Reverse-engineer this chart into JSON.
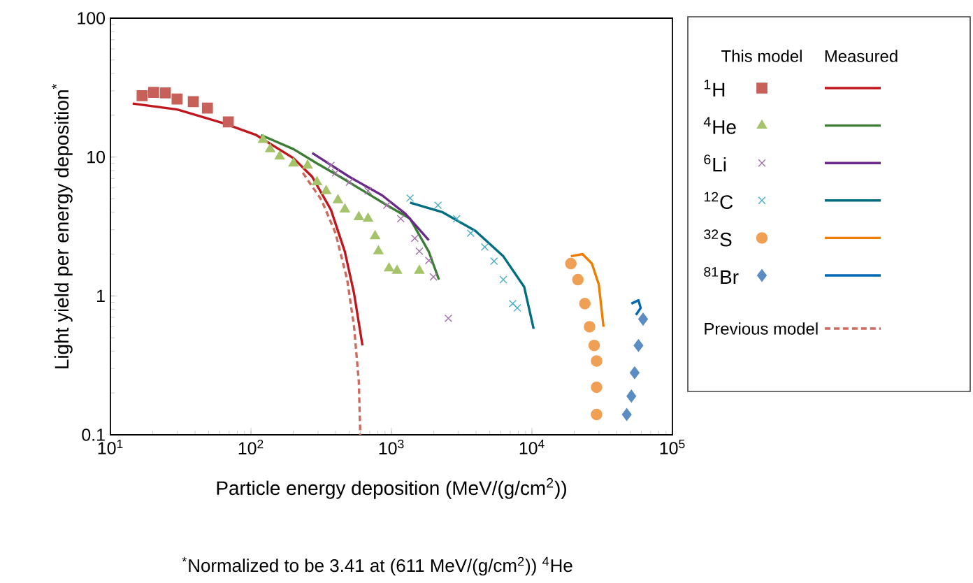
{
  "chart_data": {
    "type": "scatter",
    "xlabel": "Particle energy deposition (MeV/(g/cm$^{2}$))",
    "ylabel": "Light yield per energy deposition$^{*}$",
    "log": "xy",
    "xlim": [
      10,
      100000
    ],
    "ylim": [
      0.1,
      100
    ],
    "xticks": [
      {
        "value": 10,
        "label": "10$^{1}$"
      },
      {
        "value": 100,
        "label": "10$^{2}$"
      },
      {
        "value": 1000,
        "label": "10$^{3}$"
      },
      {
        "value": 10000,
        "label": "10$^{4}$"
      },
      {
        "value": 100000,
        "label": "10$^{5}$"
      }
    ],
    "yticks": [
      0.1,
      1,
      10,
      100
    ],
    "legend": "right",
    "annotations": [
      "This model",
      "Measured",
      "$^{*}$Normalized to be 3.41 at (611 MeV/(g/cm$^{2}$)) $^{4}$He"
    ],
    "series": [
      {
        "name": "$^{1}$H",
        "marker": "square",
        "color": "#c8605a",
        "x": [
          16.8,
          20.3,
          24.6,
          29.8,
          38.9,
          49,
          69
        ],
        "values": [
          27.7,
          29.2,
          29,
          26.2,
          25.1,
          22.5,
          17.9
        ]
      },
      {
        "name": "$^{4}$He",
        "marker": "triangle",
        "color": "#a4c36a",
        "x": [
          122,
          137,
          160,
          201,
          253,
          295,
          343,
          416,
          466,
          586,
          682,
          765,
          808,
          961,
          1096,
          1580
        ],
        "values": [
          13.3,
          11.4,
          10.1,
          9.0,
          8.7,
          6.6,
          5.7,
          4.9,
          4.2,
          3.7,
          3.6,
          2.7,
          2.1,
          1.58,
          1.52,
          1.52
        ]
      },
      {
        "name": "$^{6}$Li",
        "marker": "cross",
        "color": "#a070a8",
        "x": [
          371,
          400,
          502,
          682,
          927,
          1164,
          1466,
          1580,
          1845,
          1991,
          2541
        ],
        "values": [
          8.7,
          7.7,
          6.6,
          5.7,
          4.5,
          3.6,
          2.6,
          2.1,
          1.8,
          1.37,
          0.69
        ]
      },
      {
        "name": "$^{12}$C",
        "marker": "cross",
        "color": "#4aaec8",
        "x": [
          1356,
          2143,
          2911,
          3664,
          4613,
          5370,
          6253,
          7295,
          7870
        ],
        "values": [
          5.06,
          4.5,
          3.6,
          2.83,
          2.25,
          1.78,
          1.31,
          0.88,
          0.82
        ]
      },
      {
        "name": "$^{32}$S",
        "marker": "circle",
        "color": "#f0a055",
        "x": [
          18920,
          21230,
          23800,
          25700,
          27730,
          28840,
          28840,
          28840
        ],
        "values": [
          1.71,
          1.31,
          0.88,
          0.6,
          0.44,
          0.34,
          0.22,
          0.14
        ]
      },
      {
        "name": "$^{81}$Br",
        "marker": "diamond",
        "color": "#5b8cc4",
        "x": [
          61800,
          57300,
          53800,
          51000,
          47300
        ],
        "values": [
          0.68,
          0.44,
          0.28,
          0.19,
          0.14
        ]
      },
      {
        "type": "line",
        "color": "#c0161e",
        "x": [
          14.4,
          29.8,
          64,
          109,
          201,
          273,
          371,
          466,
          542,
          622
        ],
        "values": [
          24.3,
          22,
          17.5,
          14.4,
          9.8,
          7.2,
          4.17,
          2.08,
          1.04,
          0.44
        ]
      },
      {
        "type": "line",
        "color": "#3b7d34",
        "x": [
          118,
          201,
          295,
          432,
          632,
          927,
          1356,
          1845,
          2178
        ],
        "values": [
          14.4,
          11.4,
          9.0,
          7.2,
          5.7,
          4.5,
          3.6,
          2.08,
          1.31
        ]
      },
      {
        "type": "line",
        "color": "#6a2a8a",
        "x": [
          273,
          502,
          859,
          1259,
          1845
        ],
        "values": [
          10.7,
          7.2,
          5.3,
          3.9,
          2.52
        ]
      },
      {
        "type": "line",
        "color": "#006e80",
        "x": [
          1356,
          2317,
          3955,
          6253,
          8810,
          10280
        ],
        "values": [
          4.7,
          4.0,
          2.94,
          1.93,
          1.16,
          0.58
        ]
      },
      {
        "type": "line",
        "color": "#ee7d00",
        "x": [
          18920,
          22900,
          26700,
          29900,
          32300
        ],
        "values": [
          1.93,
          2.0,
          1.71,
          1.21,
          0.6
        ]
      },
      {
        "type": "line",
        "color": "#0069b4",
        "x": [
          51000,
          57300,
          59400,
          55000
        ],
        "values": [
          0.88,
          0.93,
          0.82,
          0.73
        ]
      },
      {
        "name": "Previous model",
        "type": "line",
        "line_style": "dashed",
        "color": "#cd6b60",
        "x": [
          234,
          318,
          400,
          484,
          542,
          586,
          600
        ],
        "values": [
          7.7,
          4.9,
          2.83,
          1.31,
          0.6,
          0.24,
          0.1
        ]
      }
    ]
  }
}
